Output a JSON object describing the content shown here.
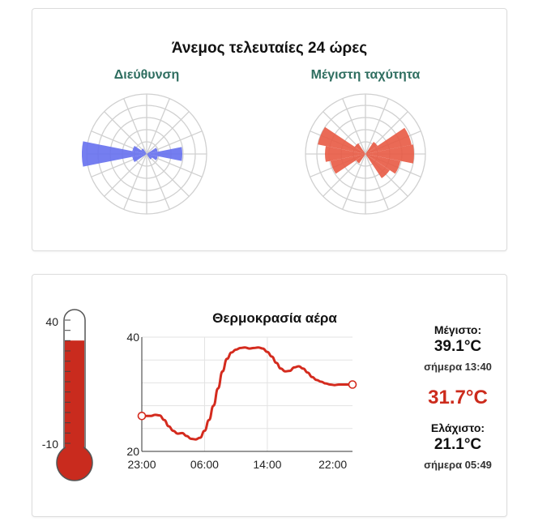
{
  "wind": {
    "title": "Άνεμος τελευταίες 24 ώρες",
    "direction_label": "Διεύθυνση",
    "speed_label": "Μέγιστη ταχύτητα",
    "direction_color": "#6670ee",
    "speed_color": "#e85a44"
  },
  "temperature": {
    "title": "Θερμοκρασία αέρα",
    "max_label": "Μέγιστο:",
    "max_value": "39.1°C",
    "max_time": "σήμερα 13:40",
    "current_value": "31.7°C",
    "min_label": "Ελάχιστο:",
    "min_value": "21.1°C",
    "min_time": "σήμερα 05:49",
    "line_color": "#d42b1e",
    "thermometer": {
      "top_label": "40",
      "bottom_label": "-10",
      "fill_color": "#c92b1e",
      "range": [
        -10,
        40
      ],
      "current": 31.7
    }
  },
  "chart_data": {
    "type": "line",
    "title": "Θερμοκρασία αέρα",
    "x_ticks": [
      "23:00",
      "06:00",
      "14:00",
      "22:00"
    ],
    "y_ticks": [
      "40",
      "20"
    ],
    "ylim": [
      20,
      40
    ],
    "xlim": [
      0,
      23.5
    ],
    "grid": true,
    "series": [
      {
        "x": [
          0,
          1,
          1.5,
          2,
          2.5,
          3,
          3.5,
          4,
          4.5,
          5,
          5.5,
          6,
          6.5,
          7,
          7.5,
          8,
          8.5,
          9,
          9.5,
          10,
          10.5,
          11,
          11.5,
          12,
          12.5,
          13,
          13.5,
          14,
          14.5,
          15,
          15.5,
          16,
          16.5,
          17,
          17.5,
          18,
          18.5,
          19,
          19.5,
          20,
          20.5,
          21,
          21.5,
          22,
          22.5,
          23.5
        ],
        "y": [
          26.2,
          26.2,
          26.4,
          26.3,
          25.5,
          24.4,
          23.6,
          23.1,
          23.2,
          22.7,
          22.2,
          22.1,
          22.4,
          23.6,
          25.5,
          28.0,
          31.0,
          34.0,
          36.2,
          37.3,
          37.8,
          38.1,
          38.2,
          38.0,
          38.1,
          38.2,
          38.0,
          37.4,
          36.6,
          35.5,
          34.5,
          34.0,
          34.1,
          34.7,
          34.9,
          34.5,
          33.8,
          33.0,
          32.5,
          32.2,
          31.9,
          31.7,
          31.6,
          31.7,
          31.7,
          31.7
        ]
      }
    ]
  }
}
